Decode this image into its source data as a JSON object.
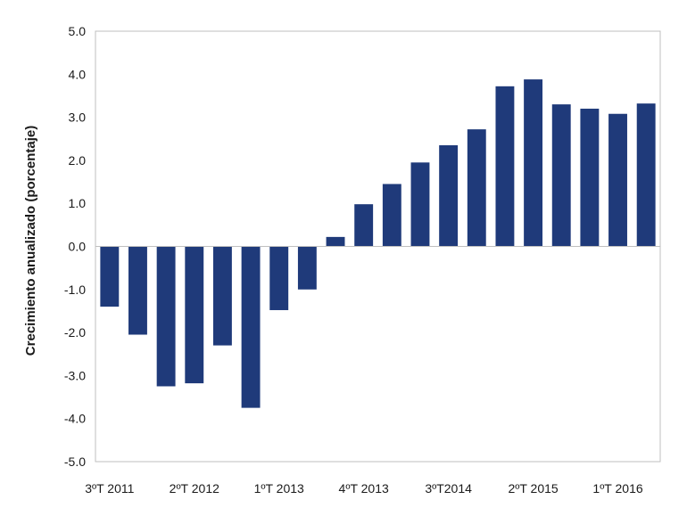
{
  "chart_data": {
    "type": "bar",
    "title": "",
    "xlabel": "",
    "ylabel": "Crecimiento anualizado (porcentaje)",
    "ylim": [
      -5.0,
      5.0
    ],
    "yticks": [
      "5.0",
      "4.0",
      "3.0",
      "2.0",
      "1.0",
      "0.0",
      "-1.0",
      "-2.0",
      "-3.0",
      "-4.0",
      "-5.0"
    ],
    "ytick_values": [
      5,
      4,
      3,
      2,
      1,
      0,
      -1,
      -2,
      -3,
      -4,
      -5
    ],
    "xtick_labels": [
      {
        "label": "3ºT 2011",
        "at": 0.5
      },
      {
        "label": "2ºT 2012",
        "at": 3.5
      },
      {
        "label": "1ºT 2013",
        "at": 6.5
      },
      {
        "label": "4ºT 2013",
        "at": 9.5
      },
      {
        "label": "3ºT2014",
        "at": 12.5
      },
      {
        "label": "2ºT 2015",
        "at": 15.5
      },
      {
        "label": "1ºT 2016",
        "at": 18.5
      }
    ],
    "values": [
      -1.4,
      -2.05,
      -3.25,
      -3.18,
      -2.3,
      -3.75,
      -1.48,
      -1.0,
      0.22,
      0.98,
      1.45,
      1.95,
      2.35,
      2.72,
      3.72,
      3.88,
      3.3,
      3.2,
      3.08,
      3.32
    ],
    "bar_color": "#1f3a7a",
    "grid": false,
    "legend": "none"
  }
}
